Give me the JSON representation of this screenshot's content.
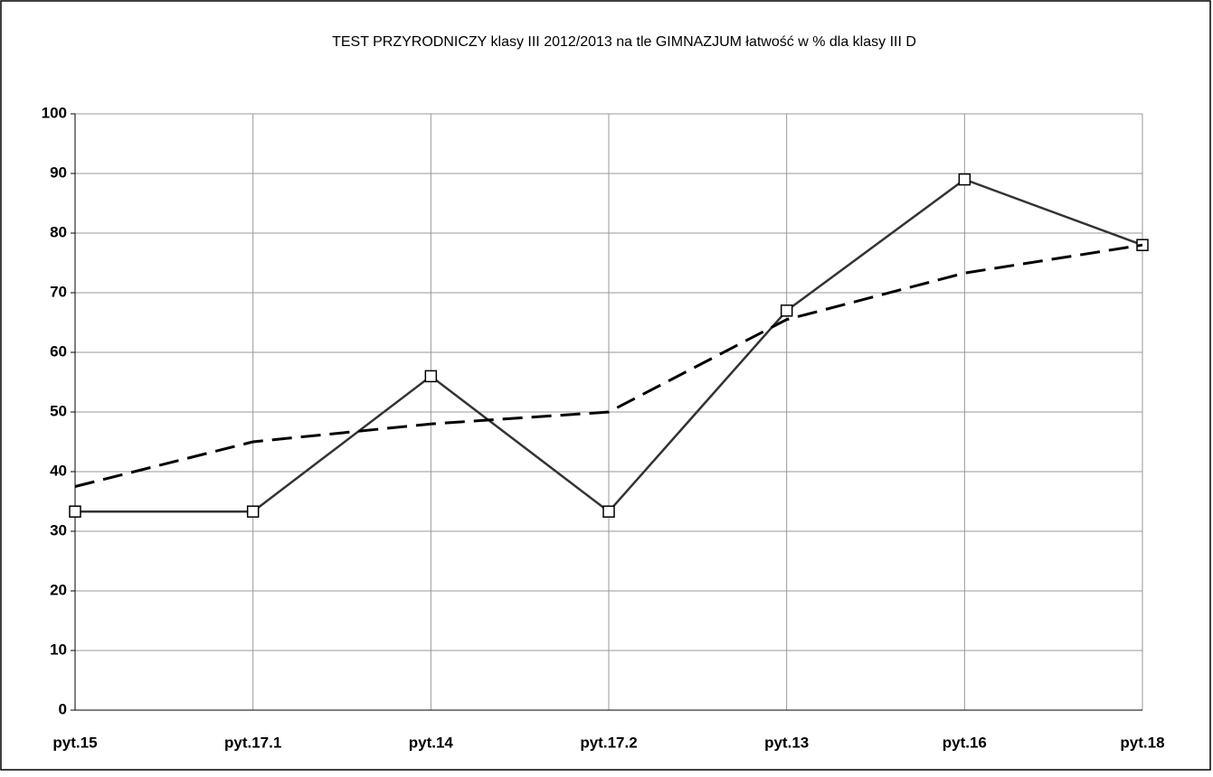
{
  "chart_data": {
    "type": "line",
    "title": "TEST PRZYRODNICZY klasy III  2012/2013 na tle GIMNAZJUM łatwość w % dla klasy III D",
    "categories": [
      "pyt.15",
      "pyt.17.1",
      "pyt.14",
      "pyt.17.2",
      "pyt.13",
      "pyt.16",
      "pyt.18"
    ],
    "series": [
      {
        "color": "#333333",
        "line_style": "solid",
        "marker": "square",
        "values": [
          33.3,
          33.3,
          56,
          33.3,
          67,
          89,
          78
        ]
      },
      {
        "color": "#000000",
        "line_style": "dashed",
        "marker": "none",
        "values": [
          37.5,
          45,
          48,
          50,
          65.5,
          73.3,
          78
        ]
      }
    ],
    "ylim": [
      0,
      100
    ],
    "yticks": [
      0,
      10,
      20,
      30,
      40,
      50,
      60,
      70,
      80,
      90,
      100
    ],
    "grid": true
  }
}
